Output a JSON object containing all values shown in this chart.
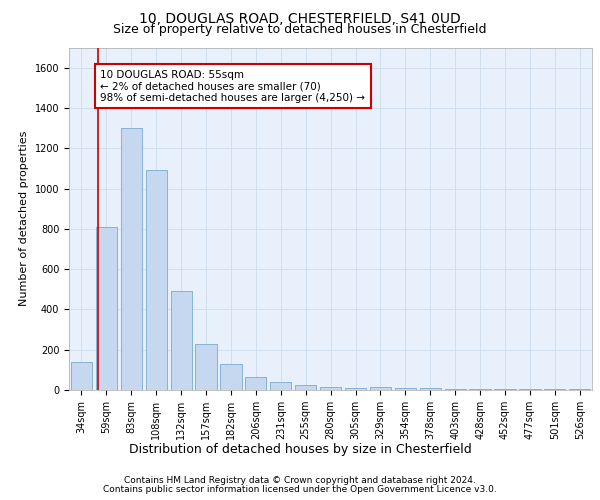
{
  "title1": "10, DOUGLAS ROAD, CHESTERFIELD, S41 0UD",
  "title2": "Size of property relative to detached houses in Chesterfield",
  "xlabel": "Distribution of detached houses by size in Chesterfield",
  "ylabel": "Number of detached properties",
  "categories": [
    "34sqm",
    "59sqm",
    "83sqm",
    "108sqm",
    "132sqm",
    "157sqm",
    "182sqm",
    "206sqm",
    "231sqm",
    "255sqm",
    "280sqm",
    "305sqm",
    "329sqm",
    "354sqm",
    "378sqm",
    "403sqm",
    "428sqm",
    "452sqm",
    "477sqm",
    "501sqm",
    "526sqm"
  ],
  "values": [
    140,
    810,
    1300,
    1090,
    490,
    230,
    130,
    65,
    38,
    25,
    15,
    10,
    15,
    10,
    8,
    5,
    5,
    5,
    5,
    5,
    5
  ],
  "bar_color": "#c5d8ef",
  "bar_edge_color": "#7aaad0",
  "grid_color": "#d0dff0",
  "background_color": "#e8f0fb",
  "annotation_line1": "10 DOUGLAS ROAD: 55sqm",
  "annotation_line2": "← 2% of detached houses are smaller (70)",
  "annotation_line3": "98% of semi-detached houses are larger (4,250) →",
  "annotation_box_facecolor": "#ffffff",
  "annotation_box_edgecolor": "#cc0000",
  "vline_color": "#cc0000",
  "footer1": "Contains HM Land Registry data © Crown copyright and database right 2024.",
  "footer2": "Contains public sector information licensed under the Open Government Licence v3.0.",
  "ylim": [
    0,
    1700
  ],
  "yticks": [
    0,
    200,
    400,
    600,
    800,
    1000,
    1200,
    1400,
    1600
  ],
  "title1_fontsize": 10,
  "title2_fontsize": 9,
  "ylabel_fontsize": 8,
  "xlabel_fontsize": 9,
  "tick_fontsize": 7,
  "footer_fontsize": 6.5,
  "annot_fontsize": 7.5
}
